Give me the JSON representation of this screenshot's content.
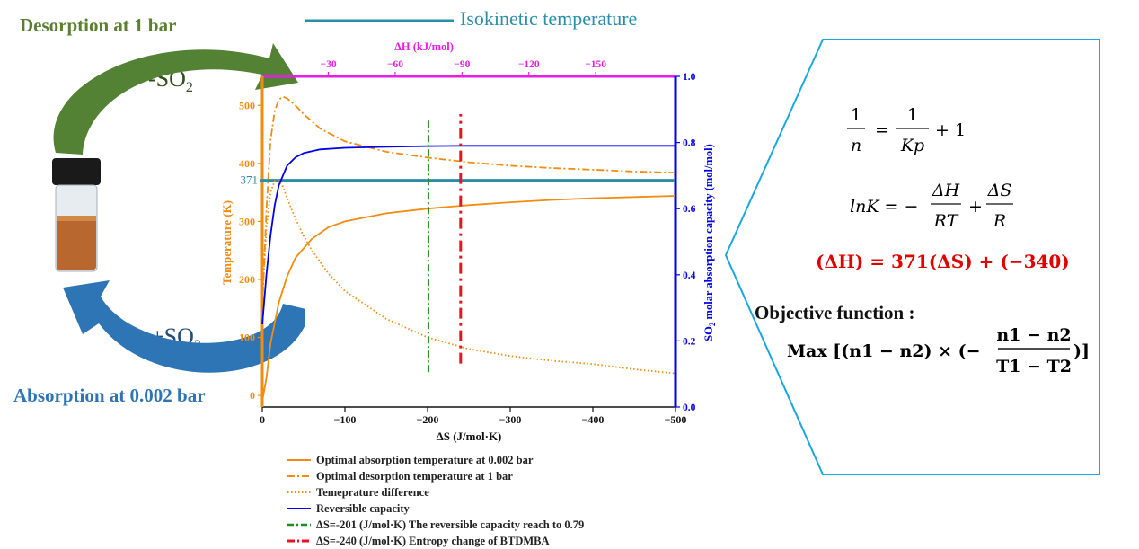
{
  "labels": {
    "desorption": "Desorption at 1 bar",
    "absorption": "Absorption at 0.002 bar",
    "so2_minus": "-SO",
    "so2_plus": "+SO",
    "so2_sub": "2",
    "isokinetic": "Isokinetic temperature",
    "objective_title": "Objective function :"
  },
  "formulas": {
    "f1_lhs_num": "1",
    "f1_lhs_den": "n",
    "f1_rhs_num": "1",
    "f1_rhs_den": "Kp",
    "f1_tail": "+ 1",
    "f2_lhs": "lnK = −",
    "f2_num1": "ΔH",
    "f2_den1": "RT",
    "f2_plus": "+",
    "f2_num2": "ΔS",
    "f2_den2": "R",
    "f3": "(ΔH)  = 371(ΔS) + (−340)",
    "f4_head": "Max [(n1 − n2) × (−",
    "f4_num": "n1 − n2",
    "f4_den": "T1 − T2",
    "f4_tail": ")]"
  },
  "colors": {
    "absorption_temp": "#f28c0f",
    "reversible_capacity": "#0000e6",
    "isokinetic": "#2a8ea8",
    "green_dash": "#1e8c1e",
    "red_dash": "#e6141e",
    "top_axis": "#e61ee6",
    "formula_red": "#e00000"
  },
  "chart_data": {
    "type": "line",
    "x_axis": {
      "label": "ΔS (J/mol·K)",
      "range": [
        0,
        -500
      ],
      "ticks": [
        0,
        -100,
        -200,
        -300,
        -400,
        -500
      ],
      "tick_labels": [
        "0",
        "−100",
        "−200",
        "−300",
        "−400",
        "−500"
      ]
    },
    "top_axis": {
      "label": "ΔH (kJ/mol)",
      "ticks": [
        -30,
        -60,
        -90,
        -120,
        -150
      ],
      "tick_labels": [
        "−30",
        "−60",
        "−90",
        "−120",
        "−150"
      ]
    },
    "y_left": {
      "label": "Temperature (K)",
      "range": [
        -20,
        550
      ],
      "ticks": [
        0,
        100,
        200,
        300,
        400,
        500
      ],
      "tick_labels": [
        "0",
        "100",
        "200",
        "300",
        "400",
        "500"
      ]
    },
    "y_right": {
      "label_pre": "SO",
      "label_sub": "2",
      "label_post": " molar absorption capacity (mol/mol)",
      "range": [
        0,
        1
      ],
      "ticks": [
        0,
        0.2,
        0.4,
        0.6,
        0.8,
        1.0
      ],
      "tick_labels": [
        "0.0",
        "0.2",
        "0.4",
        "0.6",
        "0.8",
        "1.0"
      ]
    },
    "isokinetic_value": 371,
    "isokinetic_label": "371",
    "series": [
      {
        "name": "Optimal absorption temperature at 0.002 bar",
        "axis": "left",
        "style": "solid",
        "x": [
          0,
          -5,
          -10,
          -20,
          -30,
          -40,
          -60,
          -80,
          -100,
          -150,
          -200,
          -250,
          -300,
          -350,
          -400,
          -450,
          -500
        ],
        "y": [
          -10,
          30,
          90,
          160,
          205,
          237,
          270,
          290,
          300,
          314,
          322,
          328,
          333,
          337,
          340,
          342,
          344
        ]
      },
      {
        "name": "Optimal desorption temperature at 1 bar",
        "axis": "left",
        "style": "dashdot",
        "x": [
          0,
          -5,
          -10,
          -15,
          -20,
          -25,
          -30,
          -40,
          -50,
          -70,
          -100,
          -150,
          -200,
          -250,
          -300,
          -350,
          -400,
          -450,
          -500
        ],
        "y": [
          150,
          320,
          440,
          490,
          510,
          515,
          512,
          500,
          485,
          460,
          438,
          420,
          410,
          402,
          396,
          392,
          389,
          386,
          384
        ]
      },
      {
        "name": "Temeprature difference",
        "axis": "left",
        "style": "dotted",
        "x": [
          0,
          -5,
          -10,
          -15,
          -20,
          -25,
          -30,
          -40,
          -50,
          -60,
          -80,
          -100,
          -150,
          -200,
          -250,
          -300,
          -350,
          -400,
          -450,
          -500
        ],
        "y": [
          160,
          290,
          350,
          370,
          370,
          360,
          340,
          305,
          275,
          250,
          210,
          180,
          132,
          100,
          80,
          68,
          60,
          54,
          45,
          38
        ]
      },
      {
        "name": "Reversible capacity",
        "axis": "right",
        "style": "solid",
        "x": [
          0,
          -5,
          -10,
          -15,
          -20,
          -30,
          -40,
          -50,
          -70,
          -100,
          -150,
          -200,
          -250,
          -300,
          -400,
          -500
        ],
        "y": [
          0.25,
          0.4,
          0.52,
          0.61,
          0.67,
          0.73,
          0.755,
          0.768,
          0.779,
          0.784,
          0.787,
          0.789,
          0.79,
          0.79,
          0.79,
          0.79
        ]
      }
    ],
    "vlines": [
      {
        "name": "ΔS=-201 (J/mol·K) The reversible capacity reach to 0.79",
        "x": -201,
        "y_from": 40,
        "y_to": 475,
        "color": "#1e8c1e"
      },
      {
        "name": "ΔS=-240 (J/mol·K) Entropy change of BTDMBA",
        "x": -240,
        "y_from": 55,
        "y_to": 485,
        "color": "#e6141e"
      }
    ]
  }
}
